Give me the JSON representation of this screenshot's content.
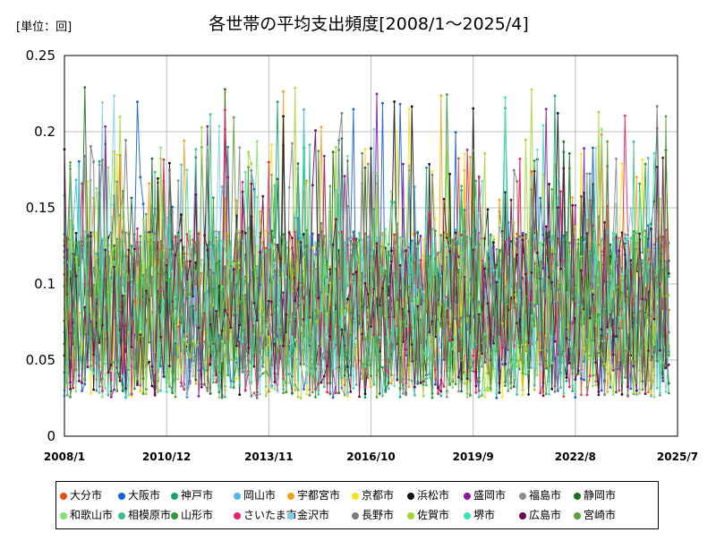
{
  "chart_data": {
    "type": "line",
    "title": "各世帯の平均支出頻度[2008/1～2025/4]",
    "unit_label": "[単位：回]",
    "xlabel": "",
    "ylabel": "",
    "x_start": "2008/1",
    "x_end": "2025/7",
    "x_ticks": [
      "2008/1",
      "2010/12",
      "2013/11",
      "2016/10",
      "2019/9",
      "2022/8",
      "2025/7"
    ],
    "y_ticks": [
      "0",
      "0.05",
      "0.1",
      "0.15",
      "0.2",
      "0.25"
    ],
    "ylim": [
      0,
      0.25
    ],
    "grid": true,
    "legend_position": "bottom",
    "series": [
      {
        "name": "大分市",
        "color": "#e8501a"
      },
      {
        "name": "大阪市",
        "color": "#1560d8"
      },
      {
        "name": "神戸市",
        "color": "#14a46e"
      },
      {
        "name": "岡山市",
        "color": "#4fb8e8"
      },
      {
        "name": "宇都宮市",
        "color": "#f5a21a"
      },
      {
        "name": "京都市",
        "color": "#f5e41a"
      },
      {
        "name": "浜松市",
        "color": "#111111"
      },
      {
        "name": "盛岡市",
        "color": "#8a1a9e"
      },
      {
        "name": "福島市",
        "color": "#8c8c8c"
      },
      {
        "name": "静岡市",
        "color": "#1e6e28"
      },
      {
        "name": "和歌山市",
        "color": "#86e070"
      },
      {
        "name": "相模原市",
        "color": "#3cc08a"
      },
      {
        "name": "山形市",
        "color": "#2e9a3a"
      },
      {
        "name": "さいたま市",
        "color": "#e8206a"
      },
      {
        "name": "金沢市",
        "color": "#7ed0e6"
      },
      {
        "name": "長野市",
        "color": "#7a7a7a"
      },
      {
        "name": "佐賀市",
        "color": "#a6d636"
      },
      {
        "name": "堺市",
        "color": "#3ee0b8"
      },
      {
        "name": "広島市",
        "color": "#6a0a4a"
      },
      {
        "name": "宮崎市",
        "color": "#5aa03c"
      }
    ]
  }
}
